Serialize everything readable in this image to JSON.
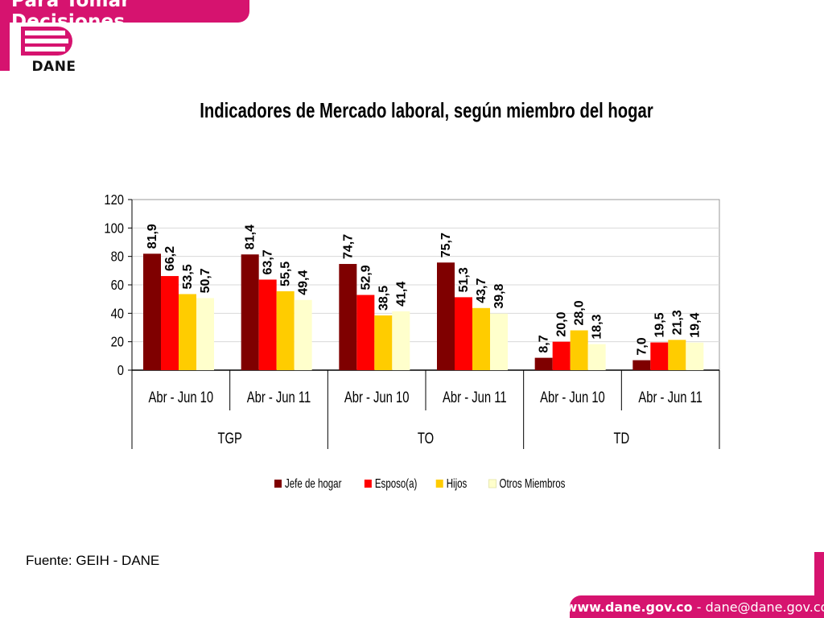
{
  "header": {
    "banner_text": "Para Tomar Decisiones",
    "logo_text": "DANE"
  },
  "colors": {
    "brand": "#d6136f"
  },
  "source_text": "Fuente: GEIH - DANE",
  "footer": {
    "website": "www.dane.gov.co",
    "separator": " - ",
    "email": "dane@dane.gov.co"
  },
  "chart_data": {
    "type": "bar",
    "title": "Indicadores de Mercado laboral, según miembro del hogar",
    "xlabel": "",
    "ylabel": "",
    "ylim": [
      0,
      120
    ],
    "yticks": [
      "0",
      "20",
      "40",
      "60",
      "80",
      "100",
      "120"
    ],
    "grid": true,
    "legend_position": "bottom",
    "groups": [
      "TGP",
      "TO",
      "TD"
    ],
    "categories": [
      "Abr - Jun 10",
      "Abr - Jun 11",
      "Abr - Jun 10",
      "Abr - Jun 11",
      "Abr - Jun 10",
      "Abr - Jun 11"
    ],
    "series": [
      {
        "name": "Jefe de hogar",
        "color": "#7f0000",
        "values": [
          81.9,
          81.4,
          74.7,
          75.7,
          8.7,
          7.0
        ],
        "labels": [
          "81,9",
          "81,4",
          "74,7",
          "75,7",
          "8,7",
          "7,0"
        ]
      },
      {
        "name": "Esposo(a)",
        "color": "#ff0000",
        "values": [
          66.2,
          63.7,
          52.9,
          51.3,
          20.0,
          19.5
        ],
        "labels": [
          "66,2",
          "63,7",
          "52,9",
          "51,3",
          "20,0",
          "19,5"
        ]
      },
      {
        "name": "Hijos",
        "color": "#ffcc00",
        "values": [
          53.5,
          55.5,
          38.5,
          43.7,
          28.0,
          21.3
        ],
        "labels": [
          "53,5",
          "55,5",
          "38,5",
          "43,7",
          "28,0",
          "21,3"
        ]
      },
      {
        "name": "Otros Miembros",
        "color": "#ffffcc",
        "values": [
          50.7,
          49.4,
          41.4,
          39.8,
          18.3,
          19.4
        ],
        "labels": [
          "50,7",
          "49,4",
          "41,4",
          "39,8",
          "18,3",
          "19,4"
        ]
      }
    ]
  }
}
